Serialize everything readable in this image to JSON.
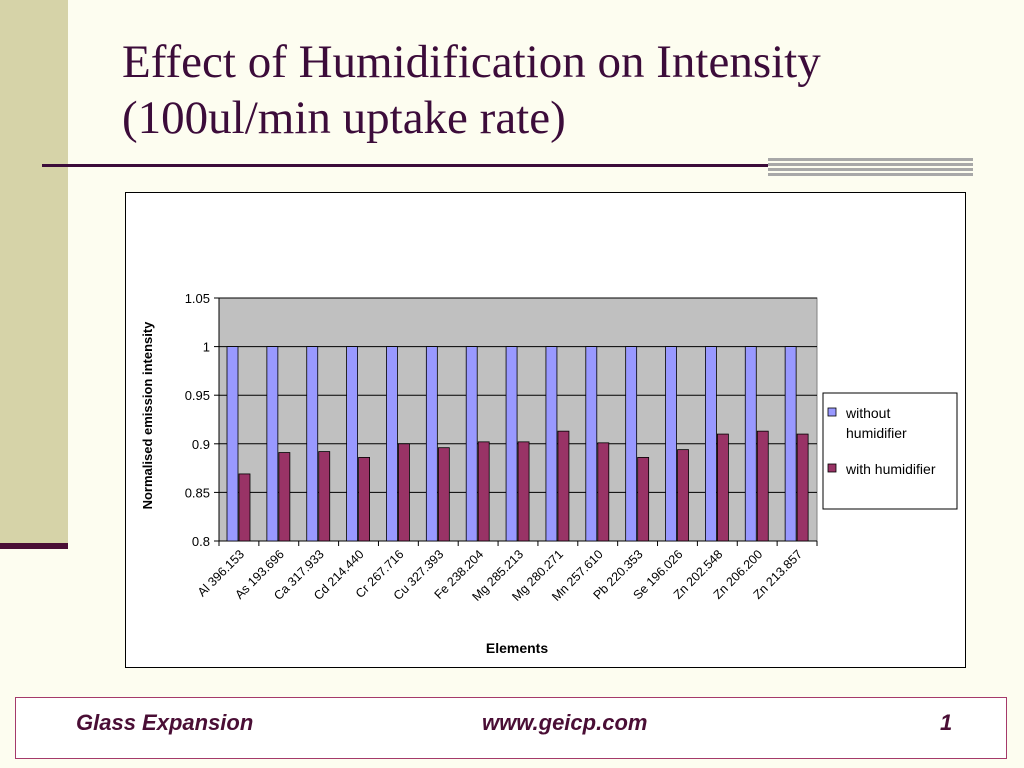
{
  "slide": {
    "title_line1": "Effect of Humidification on Intensity",
    "title_line2": "(100ul/min uptake rate)"
  },
  "footer": {
    "brand": "Glass Expansion",
    "url": "www.geicp.com",
    "page": "1"
  },
  "colors": {
    "title": "#3c0c3a",
    "series_without": "#9999ff",
    "series_with": "#993366",
    "plot_area": "#c0c0c0"
  },
  "chart_data": {
    "type": "bar",
    "xlabel": "Elements",
    "ylabel": "Normalised emission intensity",
    "ylim": [
      0.8,
      1.05
    ],
    "yticks": [
      "0.8",
      "0.85",
      "0.9",
      "0.95",
      "1",
      "1.05"
    ],
    "grid": true,
    "legend_position": "right",
    "categories": [
      "Al 396.153",
      "As 193.696",
      "Ca 317.933",
      "Cd 214.440",
      "Cr 267.716",
      "Cu 327.393",
      "Fe 238.204",
      "Mg 285.213",
      "Mg 280.271",
      "Mn 257.610",
      "Pb 220.353",
      "Se 196.026",
      "Zn 202.548",
      "Zn 206.200",
      "Zn 213.857"
    ],
    "series": [
      {
        "name": "without humidifier",
        "values": [
          1,
          1,
          1,
          1,
          1,
          1,
          1,
          1,
          1,
          1,
          1,
          1,
          1,
          1,
          1
        ]
      },
      {
        "name": "with humidifier",
        "values": [
          0.869,
          0.891,
          0.892,
          0.886,
          0.9,
          0.896,
          0.902,
          0.902,
          0.913,
          0.901,
          0.886,
          0.894,
          0.91,
          0.913,
          0.91
        ]
      }
    ]
  }
}
